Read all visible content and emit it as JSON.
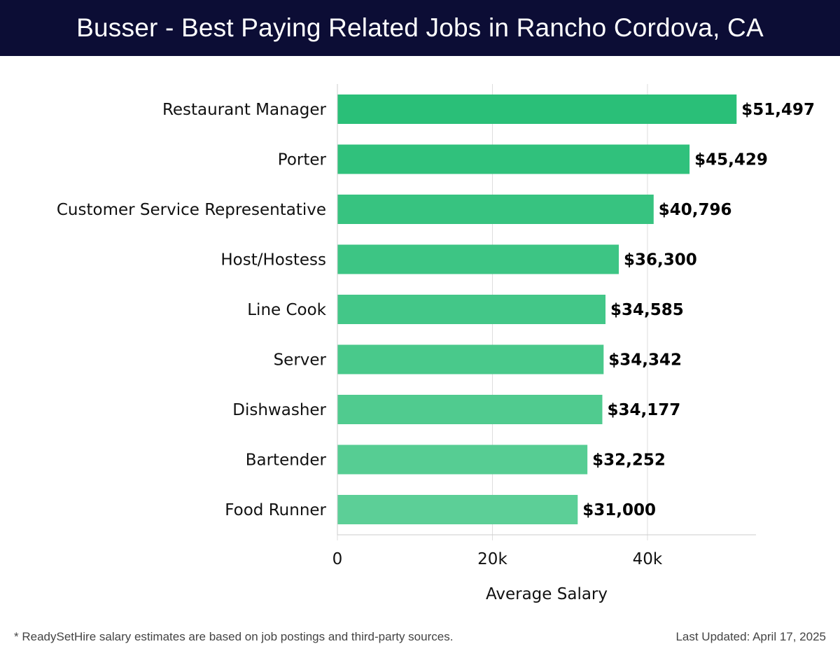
{
  "header": {
    "title": "Busser - Best Paying Related Jobs in Rancho Cordova, CA"
  },
  "chart_data": {
    "type": "bar",
    "orientation": "horizontal",
    "title": "Busser - Best Paying Related Jobs in Rancho Cordova, CA",
    "xlabel": "Average Salary",
    "ylabel": "",
    "xlim": [
      0,
      54000
    ],
    "xticks": [
      0,
      20000,
      40000
    ],
    "xtick_labels": [
      "0",
      "20k",
      "40k"
    ],
    "grid": "vertical",
    "categories": [
      "Restaurant Manager",
      "Porter",
      "Customer Service Representative",
      "Host/Hostess",
      "Line Cook",
      "Server",
      "Dishwasher",
      "Bartender",
      "Food Runner"
    ],
    "values": [
      51497,
      45429,
      40796,
      36300,
      34585,
      34342,
      34177,
      32252,
      31000
    ],
    "value_labels": [
      "$51,497",
      "$45,429",
      "$40,796",
      "$36,300",
      "$34,585",
      "$34,342",
      "$34,177",
      "$32,252",
      "$31,000"
    ],
    "colors": {
      "bar_darkest": "#2abf78",
      "bar_lightest": "#5ccf97",
      "grid": "#dddddd",
      "axis": "#cccccc"
    }
  },
  "footer": {
    "note": "* ReadySetHire salary estimates are based on job postings and third-party sources.",
    "updated": "Last Updated: April 17, 2025"
  }
}
